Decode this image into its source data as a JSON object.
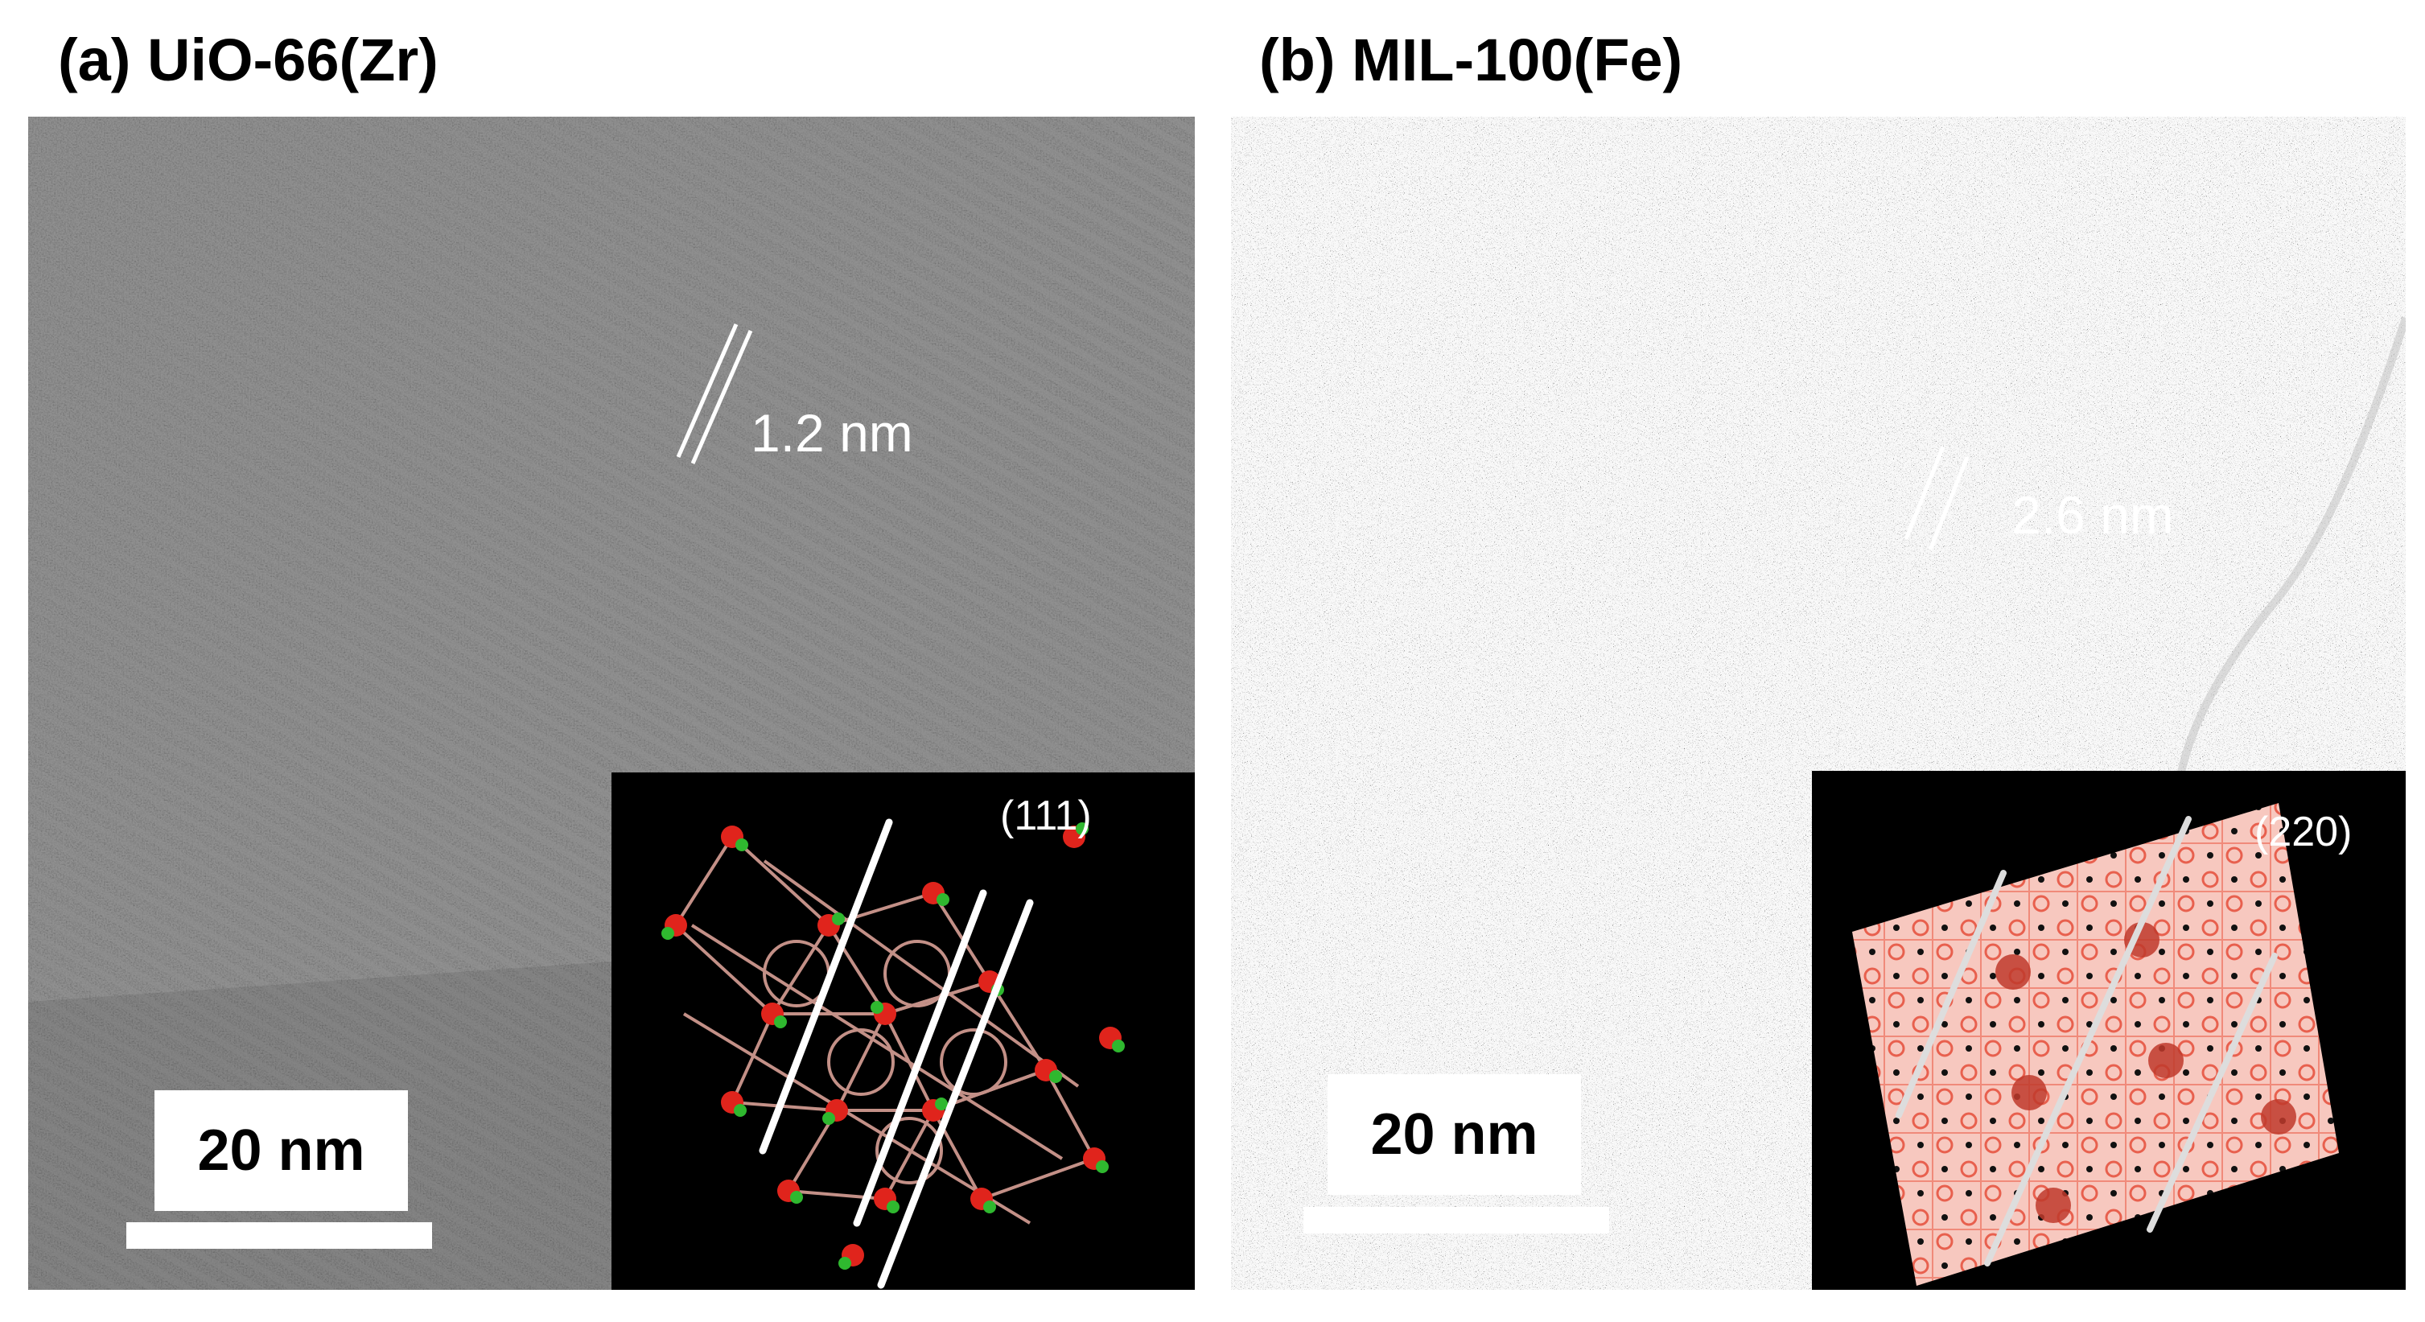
{
  "figure": {
    "panels": [
      {
        "id": "a",
        "title": "(a) UiO-66(Zr)",
        "lattice_spacing": "1.2 nm",
        "scale_bar": "20 nm",
        "inset_plane": "(111)",
        "inset_colors": {
          "framework": "#d9a096",
          "metal_node": "#2fb82f",
          "oxygen": "#e0241c",
          "plane_line": "#ffffff"
        }
      },
      {
        "id": "b",
        "title": "(b) MIL-100(Fe)",
        "lattice_spacing": "2.6 nm",
        "scale_bar": "20 nm",
        "inset_plane": "(220)",
        "inset_colors": {
          "framework": "#f08a7a",
          "cage_center": "#c0392b",
          "plane_line": "#dddddd"
        }
      }
    ]
  }
}
